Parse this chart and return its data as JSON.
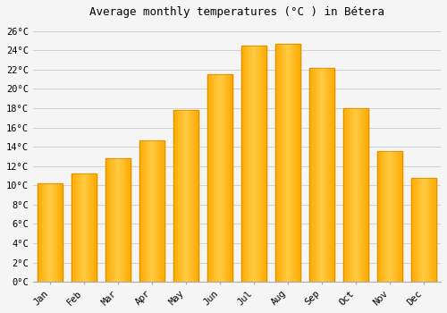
{
  "title": "Average monthly temperatures (°C ) in Bétera",
  "months": [
    "Jan",
    "Feb",
    "Mar",
    "Apr",
    "May",
    "Jun",
    "Jul",
    "Aug",
    "Sep",
    "Oct",
    "Nov",
    "Dec"
  ],
  "values": [
    10.2,
    11.2,
    12.8,
    14.7,
    17.8,
    21.5,
    24.5,
    24.7,
    22.2,
    18.0,
    13.5,
    10.8
  ],
  "bar_color": "#FFAA00",
  "bar_edge_color": "#CC8800",
  "ylim": [
    0,
    27
  ],
  "ytick_step": 2,
  "background_color": "#f5f5f5",
  "grid_color": "#cccccc",
  "title_fontsize": 9,
  "tick_fontsize": 7.5,
  "font_family": "monospace",
  "bar_width": 0.75
}
